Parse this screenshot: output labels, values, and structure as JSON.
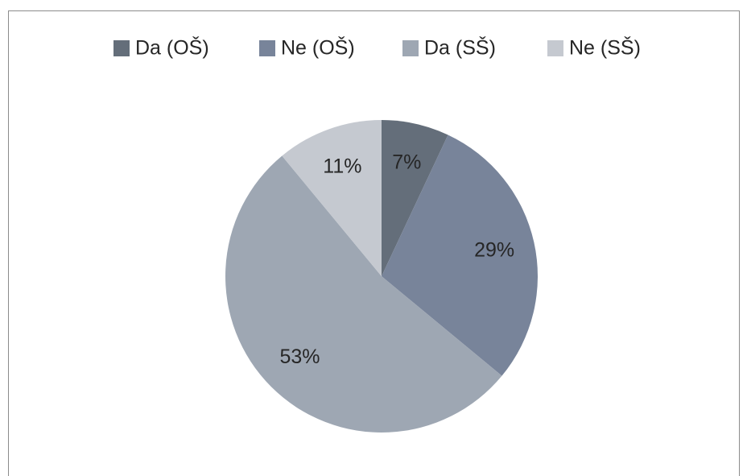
{
  "chart_data": {
    "type": "pie",
    "categories": [
      "Da (OŠ)",
      "Ne (OŠ)",
      "Da (SŠ)",
      "Ne (SŠ)"
    ],
    "values": [
      7,
      29,
      53,
      11
    ],
    "value_labels": [
      "7%",
      "29%",
      "53%",
      "11%"
    ],
    "colors": [
      "#646e7a",
      "#78849a",
      "#9ea7b3",
      "#c5c9d0"
    ],
    "legend": "top"
  }
}
